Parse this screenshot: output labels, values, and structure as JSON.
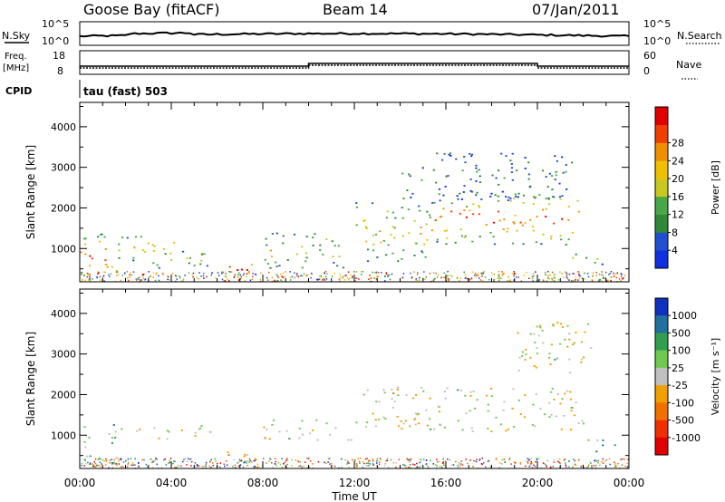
{
  "header": {
    "station": "Goose Bay (fitACF)",
    "beam": "Beam 14",
    "date": "07/Jan/2011"
  },
  "strips": {
    "nsky_label": "N.Sky",
    "nsky_ticks": [
      "10^5",
      "10^0"
    ],
    "nsearch_label": "N.Search",
    "nsearch_ticks": [
      "10^5",
      "10^0"
    ],
    "freq_label_line1": "Freq.",
    "freq_label_line2": "[MHz]",
    "freq_ticks": [
      "18",
      "8"
    ],
    "nave_label": "Nave",
    "nave_ticks": [
      "60",
      "0"
    ],
    "cpid_label": "CPID",
    "cpid_text": "tau (fast) 503"
  },
  "colors": {
    "power_scale": [
      "#1030e0",
      "#2050d0",
      "#308838",
      "#48a848",
      "#c8c820",
      "#f0c000",
      "#f09000",
      "#f04000",
      "#e00000"
    ],
    "velocity_scale": [
      "#1030c0",
      "#2070a0",
      "#30a050",
      "#70c850",
      "#c0c0c0",
      "#f0a000",
      "#f07000",
      "#f03000",
      "#e00000"
    ]
  },
  "chart_data": [
    {
      "type": "heatmap",
      "name": "Power",
      "xlabel": "",
      "ylabel": "Slant Range [km]",
      "xlim": [
        0,
        24
      ],
      "ylim": [
        180,
        4600
      ],
      "yticks": [
        1000,
        2000,
        3000,
        4000
      ],
      "colorbar_label": "Power [dB]",
      "colorbar_ticks": [
        "4",
        "8",
        "12",
        "16",
        "20",
        "24",
        "28"
      ],
      "scatter_regions": [
        {
          "t0": 0.0,
          "t1": 1.6,
          "r0": 200,
          "r1": 1400,
          "level": 0.8
        },
        {
          "t0": 1.6,
          "t1": 4.2,
          "r0": 700,
          "r1": 1350,
          "level": 0.55
        },
        {
          "t0": 3.0,
          "t1": 5.8,
          "r0": 500,
          "r1": 1000,
          "level": 0.45
        },
        {
          "t0": 6.2,
          "t1": 7.8,
          "r0": 300,
          "r1": 700,
          "level": 0.85
        },
        {
          "t0": 8.0,
          "t1": 11.8,
          "r0": 500,
          "r1": 1400,
          "level": 0.5
        },
        {
          "t0": 12.0,
          "t1": 15.5,
          "r0": 700,
          "r1": 2200,
          "level": 0.55
        },
        {
          "t0": 15.5,
          "t1": 22.0,
          "r0": 1100,
          "r1": 2400,
          "level": 0.75
        },
        {
          "t0": 14.0,
          "t1": 21.5,
          "r0": 2200,
          "r1": 3400,
          "level": 0.25
        },
        {
          "t0": 21.5,
          "t1": 23.4,
          "r0": 600,
          "r1": 900,
          "level": 0.4
        }
      ]
    },
    {
      "type": "heatmap",
      "name": "Velocity",
      "xlabel": "Time UT",
      "ylabel": "Slant Range [km]",
      "xlim": [
        0,
        24
      ],
      "ylim": [
        180,
        4600
      ],
      "xticks": [
        "00:00",
        "04:00",
        "08:00",
        "12:00",
        "16:00",
        "20:00",
        "00:00"
      ],
      "yticks": [
        1000,
        2000,
        3000,
        4000
      ],
      "colorbar_label": "Velocity [m s⁻¹]",
      "colorbar_ticks": [
        "1000",
        "500",
        "100",
        "25",
        "-25",
        "-100",
        "-500",
        "-1000"
      ],
      "scatter_regions": [
        {
          "t0": 0.0,
          "t1": 1.6,
          "r0": 300,
          "r1": 1300,
          "level": 0.3
        },
        {
          "t0": 1.6,
          "t1": 5.8,
          "r0": 900,
          "r1": 1250,
          "level": 0.5
        },
        {
          "t0": 6.2,
          "t1": 7.8,
          "r0": 300,
          "r1": 700,
          "level": 0.6
        },
        {
          "t0": 8.0,
          "t1": 12.0,
          "r0": 900,
          "r1": 1400,
          "level": 0.5
        },
        {
          "t0": 12.0,
          "t1": 22.0,
          "r0": 1100,
          "r1": 2200,
          "level": 0.5
        },
        {
          "t0": 19.0,
          "t1": 22.5,
          "r0": 2500,
          "r1": 3800,
          "level": 0.5
        },
        {
          "t0": 21.5,
          "t1": 23.4,
          "r0": 600,
          "r1": 900,
          "level": 0.3
        }
      ]
    }
  ]
}
